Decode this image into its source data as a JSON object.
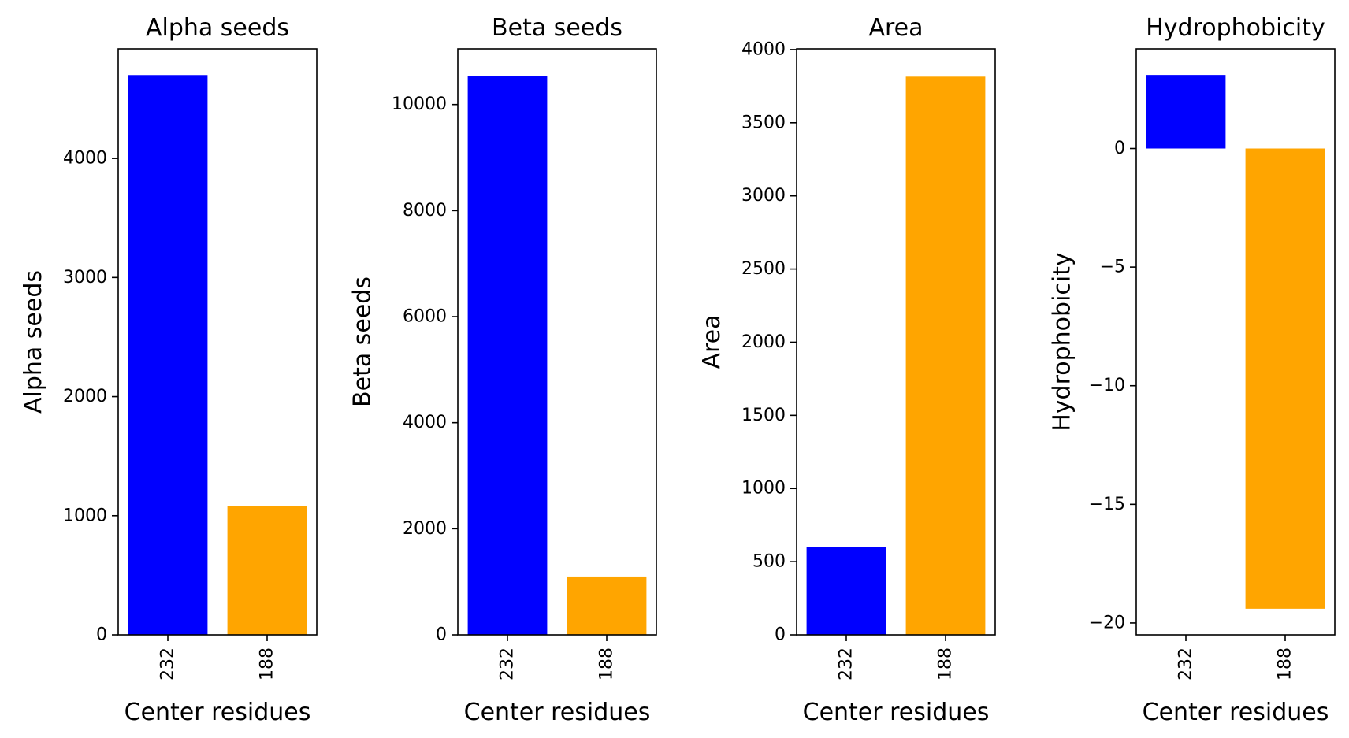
{
  "chart_data": [
    {
      "type": "bar",
      "title": "Alpha seeds",
      "xlabel": "Center residues",
      "ylabel": "Alpha seeds",
      "categories": [
        "232",
        "188"
      ],
      "values": [
        4700,
        1080
      ],
      "colors": [
        "#0000ff",
        "#ffa500"
      ],
      "ylim": [
        0,
        4920
      ],
      "yticks": [
        0,
        1000,
        2000,
        3000,
        4000
      ],
      "ytick_labels": [
        "0",
        "1000",
        "2000",
        "3000",
        "4000"
      ],
      "grid": false,
      "legend": "none"
    },
    {
      "type": "bar",
      "title": "Beta seeds",
      "xlabel": "Center residues",
      "ylabel": "Beta seeds",
      "categories": [
        "232",
        "188"
      ],
      "values": [
        10530,
        1100
      ],
      "colors": [
        "#0000ff",
        "#ffa500"
      ],
      "ylim": [
        0,
        11050
      ],
      "yticks": [
        0,
        2000,
        4000,
        6000,
        8000,
        10000
      ],
      "ytick_labels": [
        "0",
        "2000",
        "4000",
        "6000",
        "8000",
        "10000"
      ],
      "grid": false,
      "legend": "none"
    },
    {
      "type": "bar",
      "title": "Area",
      "xlabel": "Center residues",
      "ylabel": "Area",
      "categories": [
        "232",
        "188"
      ],
      "values": [
        600,
        3815
      ],
      "colors": [
        "#0000ff",
        "#ffa500"
      ],
      "ylim": [
        0,
        4005
      ],
      "yticks": [
        0,
        500,
        1000,
        1500,
        2000,
        2500,
        3000,
        3500,
        4000
      ],
      "ytick_labels": [
        "0",
        "500",
        "1000",
        "1500",
        "2000",
        "2500",
        "3000",
        "3500",
        "4000"
      ],
      "grid": false,
      "legend": "none"
    },
    {
      "type": "bar",
      "title": "Hydrophobicity",
      "xlabel": "Center residues",
      "ylabel": "Hydrophobicity",
      "categories": [
        "232",
        "188"
      ],
      "values": [
        3.1,
        -19.4
      ],
      "colors": [
        "#0000ff",
        "#ffa500"
      ],
      "ylim": [
        -20.5,
        4.2
      ],
      "yticks": [
        0,
        -5,
        -10,
        -15,
        -20
      ],
      "ytick_labels": [
        "0",
        "−5",
        "−10",
        "−15",
        "−20"
      ],
      "grid": false,
      "legend": "none"
    }
  ]
}
